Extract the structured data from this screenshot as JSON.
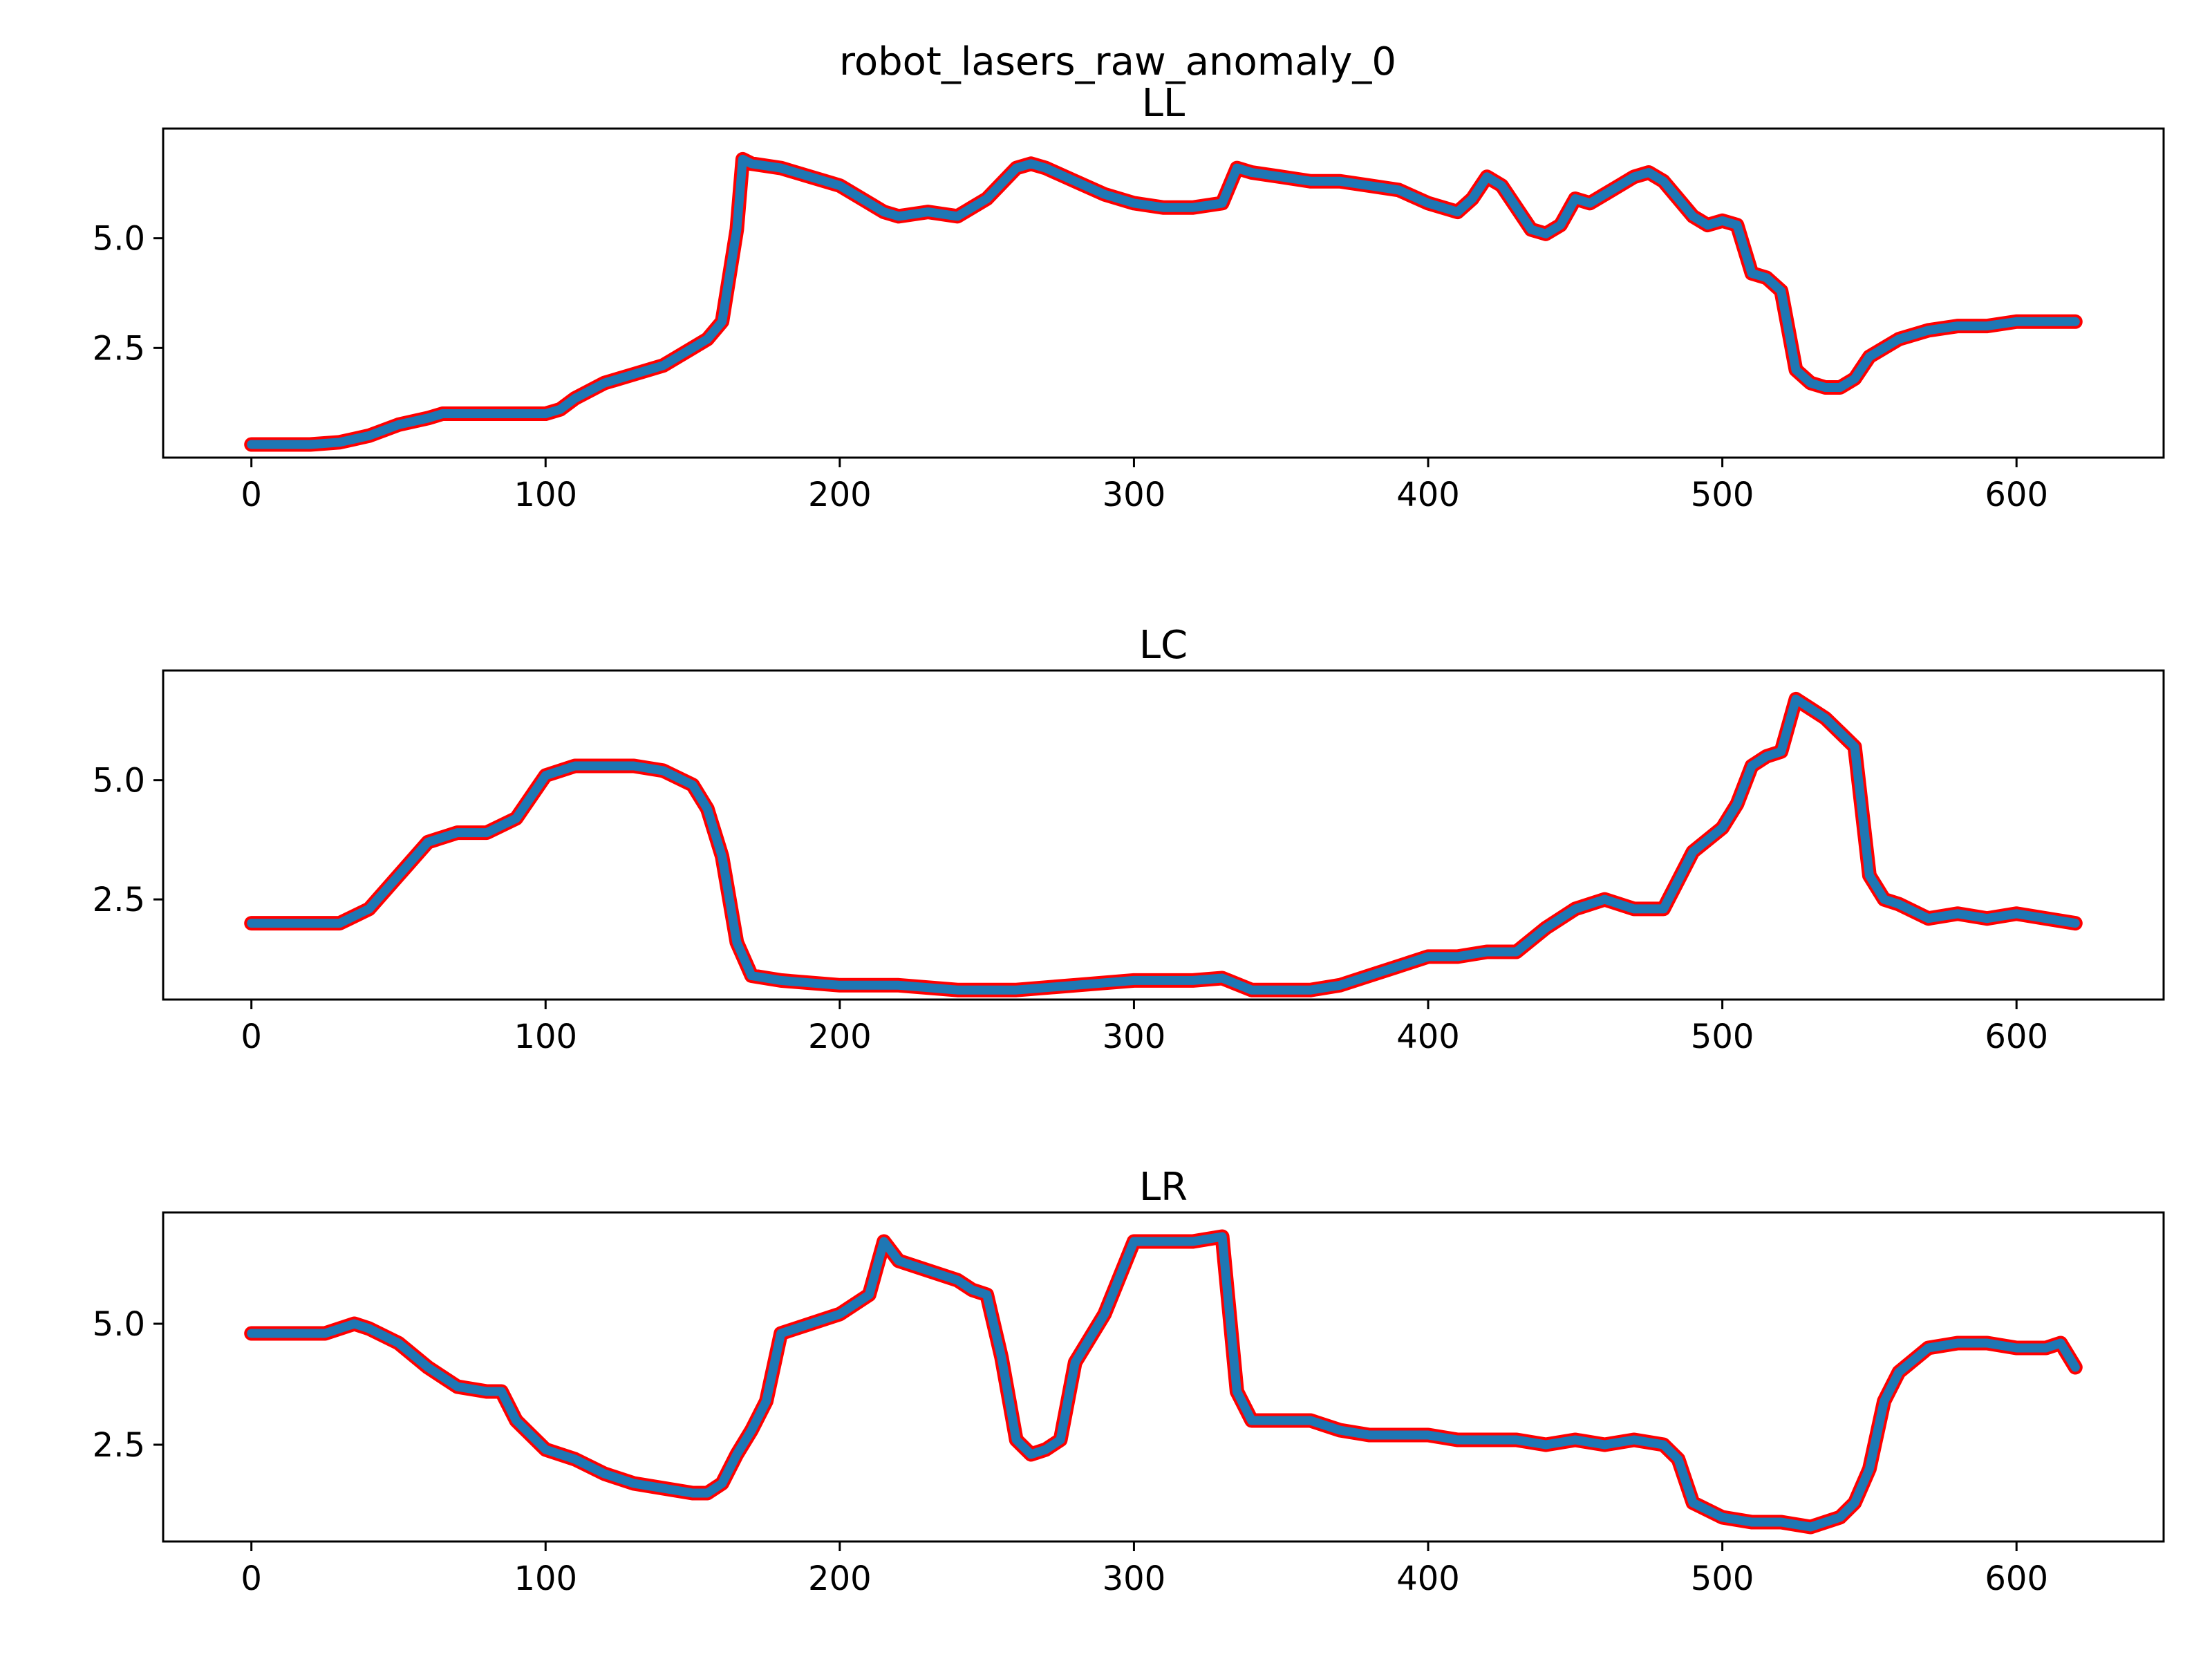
{
  "figure": {
    "suptitle": "robot_lasers_raw_anomaly_0",
    "colors": {
      "series": "#1f77b4",
      "edge": "#ff0000",
      "axes": "#000000",
      "background": "#ffffff"
    }
  },
  "chart_data": [
    {
      "type": "line",
      "title": "LL",
      "xlabel": "",
      "ylabel": "",
      "xlim": [
        -30,
        650
      ],
      "ylim": [
        0.0,
        7.5
      ],
      "xticks": [
        0,
        100,
        200,
        300,
        400,
        500,
        600
      ],
      "xtick_labels": [
        "0",
        "100",
        "200",
        "300",
        "400",
        "500",
        "600"
      ],
      "yticks": [
        2.5,
        5.0
      ],
      "ytick_labels": [
        "2.5",
        "5.0"
      ],
      "grid": false,
      "series": [
        {
          "x": [
            0,
            20,
            30,
            40,
            50,
            60,
            65,
            80,
            100,
            105,
            110,
            120,
            130,
            140,
            150,
            155,
            160,
            165,
            167,
            170,
            180,
            190,
            200,
            210,
            215,
            220,
            230,
            240,
            250,
            260,
            265,
            270,
            280,
            290,
            300,
            310,
            320,
            330,
            335,
            340,
            350,
            360,
            370,
            380,
            390,
            400,
            410,
            415,
            420,
            425,
            430,
            435,
            440,
            445,
            450,
            455,
            460,
            465,
            470,
            475,
            480,
            485,
            490,
            495,
            500,
            505,
            510,
            515,
            520,
            525,
            530,
            535,
            540,
            545,
            550,
            560,
            570,
            580,
            590,
            600,
            610,
            620
          ],
          "y": [
            0.3,
            0.3,
            0.35,
            0.5,
            0.75,
            0.9,
            1.0,
            1.0,
            1.0,
            1.1,
            1.35,
            1.7,
            1.9,
            2.1,
            2.5,
            2.7,
            3.1,
            5.2,
            6.8,
            6.7,
            6.6,
            6.4,
            6.2,
            5.8,
            5.6,
            5.5,
            5.6,
            5.5,
            5.9,
            6.6,
            6.7,
            6.6,
            6.3,
            6.0,
            5.8,
            5.7,
            5.7,
            5.8,
            6.6,
            6.5,
            6.4,
            6.3,
            6.3,
            6.2,
            6.1,
            5.8,
            5.6,
            5.9,
            6.4,
            6.2,
            5.7,
            5.2,
            5.1,
            5.3,
            5.9,
            5.8,
            6.0,
            6.2,
            6.4,
            6.5,
            6.3,
            5.9,
            5.5,
            5.3,
            5.4,
            5.3,
            4.2,
            4.1,
            3.8,
            2.0,
            1.7,
            1.6,
            1.6,
            1.8,
            2.3,
            2.7,
            2.9,
            3.0,
            3.0,
            3.1,
            3.1,
            3.1
          ]
        }
      ]
    },
    {
      "type": "line",
      "title": "LC",
      "xlabel": "",
      "ylabel": "",
      "xlim": [
        -30,
        650
      ],
      "ylim": [
        0.4,
        7.3
      ],
      "xticks": [
        0,
        100,
        200,
        300,
        400,
        500,
        600
      ],
      "xtick_labels": [
        "0",
        "100",
        "200",
        "300",
        "400",
        "500",
        "600"
      ],
      "yticks": [
        2.5,
        5.0
      ],
      "ytick_labels": [
        "2.5",
        "5.0"
      ],
      "grid": false,
      "series": [
        {
          "x": [
            0,
            20,
            30,
            40,
            50,
            60,
            70,
            80,
            90,
            100,
            110,
            120,
            130,
            140,
            150,
            155,
            160,
            165,
            170,
            180,
            200,
            220,
            240,
            260,
            280,
            300,
            320,
            330,
            340,
            360,
            370,
            380,
            390,
            400,
            410,
            420,
            430,
            440,
            450,
            460,
            470,
            480,
            490,
            500,
            505,
            510,
            515,
            520,
            525,
            530,
            535,
            540,
            545,
            550,
            555,
            560,
            570,
            580,
            590,
            600,
            610,
            620
          ],
          "y": [
            2.0,
            2.0,
            2.0,
            2.3,
            3.0,
            3.7,
            3.9,
            3.9,
            4.2,
            5.1,
            5.3,
            5.3,
            5.3,
            5.2,
            4.9,
            4.4,
            3.4,
            1.6,
            0.9,
            0.8,
            0.7,
            0.7,
            0.6,
            0.6,
            0.7,
            0.8,
            0.8,
            0.85,
            0.6,
            0.6,
            0.7,
            0.9,
            1.1,
            1.3,
            1.3,
            1.4,
            1.4,
            1.9,
            2.3,
            2.5,
            2.3,
            2.3,
            3.5,
            4.0,
            4.5,
            5.3,
            5.5,
            5.6,
            6.7,
            6.5,
            6.3,
            6.0,
            5.7,
            3.0,
            2.5,
            2.4,
            2.1,
            2.2,
            2.1,
            2.2,
            2.1,
            2.0
          ]
        }
      ]
    },
    {
      "type": "line",
      "title": "LR",
      "xlabel": "",
      "ylabel": "",
      "xlim": [
        -30,
        650
      ],
      "ylim": [
        0.5,
        7.3
      ],
      "xticks": [
        0,
        100,
        200,
        300,
        400,
        500,
        600
      ],
      "xtick_labels": [
        "0",
        "100",
        "200",
        "300",
        "400",
        "500",
        "600"
      ],
      "yticks": [
        2.5,
        5.0
      ],
      "ytick_labels": [
        "2.5",
        "5.0"
      ],
      "grid": false,
      "series": [
        {
          "x": [
            0,
            25,
            30,
            35,
            40,
            50,
            60,
            70,
            80,
            85,
            90,
            100,
            110,
            120,
            130,
            140,
            150,
            155,
            160,
            165,
            170,
            175,
            180,
            190,
            200,
            210,
            215,
            220,
            230,
            240,
            245,
            250,
            255,
            260,
            265,
            270,
            275,
            280,
            290,
            300,
            310,
            320,
            330,
            335,
            340,
            350,
            360,
            370,
            380,
            390,
            400,
            410,
            420,
            430,
            440,
            450,
            460,
            470,
            480,
            485,
            490,
            500,
            510,
            520,
            530,
            540,
            545,
            550,
            555,
            560,
            570,
            580,
            590,
            600,
            610,
            615,
            620
          ],
          "y": [
            4.8,
            4.8,
            4.9,
            5.0,
            4.9,
            4.6,
            4.1,
            3.7,
            3.6,
            3.6,
            3.0,
            2.4,
            2.2,
            1.9,
            1.7,
            1.6,
            1.5,
            1.5,
            1.7,
            2.3,
            2.8,
            3.4,
            4.8,
            5.0,
            5.2,
            5.6,
            6.7,
            6.3,
            6.1,
            5.9,
            5.7,
            5.6,
            4.3,
            2.6,
            2.3,
            2.4,
            2.6,
            4.2,
            5.2,
            6.7,
            6.7,
            6.7,
            6.8,
            3.6,
            3.0,
            3.0,
            3.0,
            2.8,
            2.7,
            2.7,
            2.7,
            2.6,
            2.6,
            2.6,
            2.5,
            2.6,
            2.5,
            2.6,
            2.5,
            2.2,
            1.3,
            1.0,
            0.9,
            0.9,
            0.8,
            1.0,
            1.3,
            2.0,
            3.4,
            4.0,
            4.5,
            4.6,
            4.6,
            4.5,
            4.5,
            4.6,
            4.1
          ]
        }
      ]
    }
  ]
}
